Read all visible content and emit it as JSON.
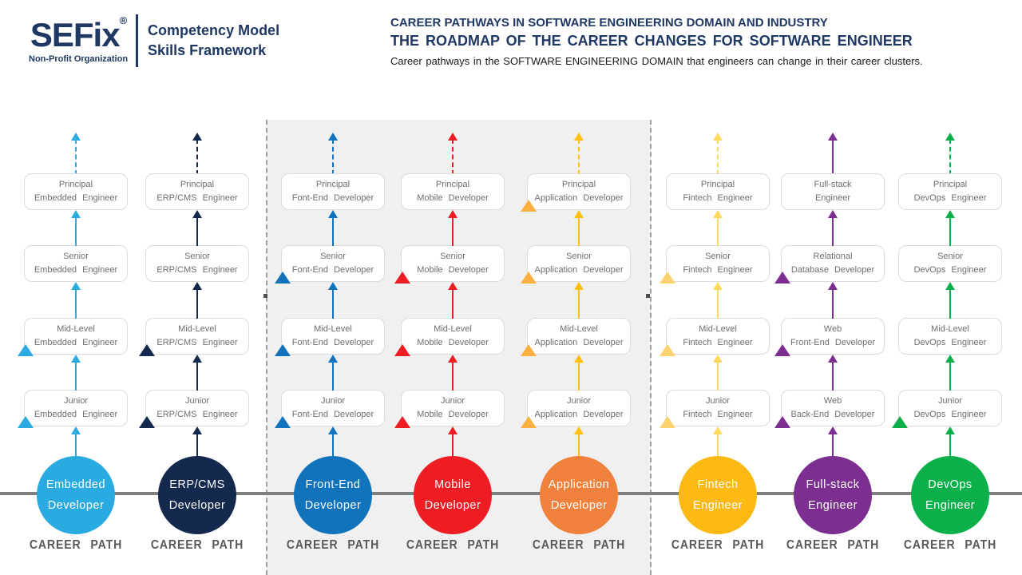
{
  "brand": {
    "logo_text": "SEFix",
    "registered_mark": "®",
    "logo_subtext": "Non-Profit Organization",
    "tagline_line1": "Competency Model",
    "tagline_line2": "Skills Framework",
    "brand_color": "#1F3864"
  },
  "header": {
    "title_line1": "CAREER PATHWAYS IN SOFTWARE ENGINEERING DOMAIN AND INDUSTRY",
    "title_line2": "THE ROADMAP OF THE CAREER CHANGES FOR SOFTWARE ENGINEER",
    "subtitle": "Career pathways in the SOFTWARE ENGINEERING DOMAIN that engineers can change in their career clusters."
  },
  "career_path_label": "CAREER PATH",
  "timeline_color": "#7F7F7F",
  "highlight_panel": {
    "background": "#F0F0F0",
    "border_color": "#9E9E9E",
    "handle_color": "#4D4D4D"
  },
  "columns": [
    {
      "id": "embedded-developer",
      "color": "#29ABE2",
      "circle_label_line1": "Embedded",
      "circle_label_line2": "Developer",
      "top_arrow_dashed": true,
      "levels": [
        {
          "line1": "Principal",
          "line2": "Embedded Engineer",
          "entry_marker": false
        },
        {
          "line1": "Senior",
          "line2": "Embedded Engineer",
          "entry_marker": false
        },
        {
          "line1": "Mid-Level",
          "line2": "Embedded Engineer",
          "entry_marker": true
        },
        {
          "line1": "Junior",
          "line2": "Embedded Engineer",
          "entry_marker": true
        }
      ]
    },
    {
      "id": "erp-cms-developer",
      "color": "#13294E",
      "circle_label_line1": "ERP/CMS",
      "circle_label_line2": "Developer",
      "top_arrow_dashed": true,
      "levels": [
        {
          "line1": "Principal",
          "line2": "ERP/CMS Engineer",
          "entry_marker": false
        },
        {
          "line1": "Senior",
          "line2": "ERP/CMS Engineer",
          "entry_marker": false
        },
        {
          "line1": "Mid-Level",
          "line2": "ERP/CMS Engineer",
          "entry_marker": true
        },
        {
          "line1": "Junior",
          "line2": "ERP/CMS Engineer",
          "entry_marker": true
        }
      ]
    },
    {
      "id": "front-end-developer",
      "color": "#1173BC",
      "circle_label_line1": "Front-End",
      "circle_label_line2": "Developer",
      "top_arrow_dashed": true,
      "levels": [
        {
          "line1": "Principal",
          "line2": "Font-End Developer",
          "entry_marker": false
        },
        {
          "line1": "Senior",
          "line2": "Font-End Developer",
          "entry_marker": true
        },
        {
          "line1": "Mid-Level",
          "line2": "Font-End Developer",
          "entry_marker": true
        },
        {
          "line1": "Junior",
          "line2": "Font-End Developer",
          "entry_marker": true
        }
      ]
    },
    {
      "id": "mobile-developer",
      "color": "#EE1C23",
      "circle_label_line1": "Mobile",
      "circle_label_line2": "Developer",
      "top_arrow_dashed": true,
      "levels": [
        {
          "line1": "Principal",
          "line2": "Mobile Developer",
          "entry_marker": false
        },
        {
          "line1": "Senior",
          "line2": "Mobile Developer",
          "entry_marker": true
        },
        {
          "line1": "Mid-Level",
          "line2": "Mobile Developer",
          "entry_marker": true
        },
        {
          "line1": "Junior",
          "line2": "Mobile Developer",
          "entry_marker": true
        }
      ]
    },
    {
      "id": "application-developer",
      "color": "#F0813C",
      "arrow_color": "#FFC10E",
      "marker_color": "#FBB040",
      "circle_label_line1": "Application",
      "circle_label_line2": "Developer",
      "top_arrow_dashed": true,
      "levels": [
        {
          "line1": "Principal",
          "line2": "Application Developer",
          "entry_marker": true
        },
        {
          "line1": "Senior",
          "line2": "Application Developer",
          "entry_marker": true
        },
        {
          "line1": "Mid-Level",
          "line2": "Application Developer",
          "entry_marker": true
        },
        {
          "line1": "Junior",
          "line2": "Application Developer",
          "entry_marker": true
        }
      ]
    },
    {
      "id": "fintech-engineer",
      "color": "#FCB813",
      "arrow_color": "#FFD95D",
      "marker_color": "#FDD36E",
      "circle_label_line1": "Fintech",
      "circle_label_line2": "Engineer",
      "top_arrow_dashed": true,
      "levels": [
        {
          "line1": "Principal",
          "line2": "Fintech Engineer",
          "entry_marker": false
        },
        {
          "line1": "Senior",
          "line2": "Fintech Engineer",
          "entry_marker": true
        },
        {
          "line1": "Mid-Level",
          "line2": "Fintech Engineer",
          "entry_marker": true
        },
        {
          "line1": "Junior",
          "line2": "Fintech Engineer",
          "entry_marker": true
        }
      ]
    },
    {
      "id": "full-stack-engineer",
      "color": "#7C2F90",
      "circle_label_line1": "Full-stack",
      "circle_label_line2": "Engineer",
      "top_arrow_dashed": false,
      "levels": [
        {
          "line1": "Full-stack",
          "line2": "Engineer",
          "entry_marker": false
        },
        {
          "line1": "Relational",
          "line2": "Database Developer",
          "entry_marker": true
        },
        {
          "line1": "Web",
          "line2": "Front-End Developer",
          "entry_marker": true
        },
        {
          "line1": "Web",
          "line2": "Back-End Developer",
          "entry_marker": true
        }
      ]
    },
    {
      "id": "devops-engineer",
      "color": "#0CB04A",
      "circle_label_line1": "DevOps",
      "circle_label_line2": "Engineer",
      "top_arrow_dashed": true,
      "levels": [
        {
          "line1": "Principal",
          "line2": "DevOps Engineer",
          "entry_marker": false
        },
        {
          "line1": "Senior",
          "line2": "DevOps Engineer",
          "entry_marker": false
        },
        {
          "line1": "Mid-Level",
          "line2": "DevOps Engineer",
          "entry_marker": false
        },
        {
          "line1": "Junior",
          "line2": "DevOps Engineer",
          "entry_marker": true
        }
      ]
    }
  ]
}
